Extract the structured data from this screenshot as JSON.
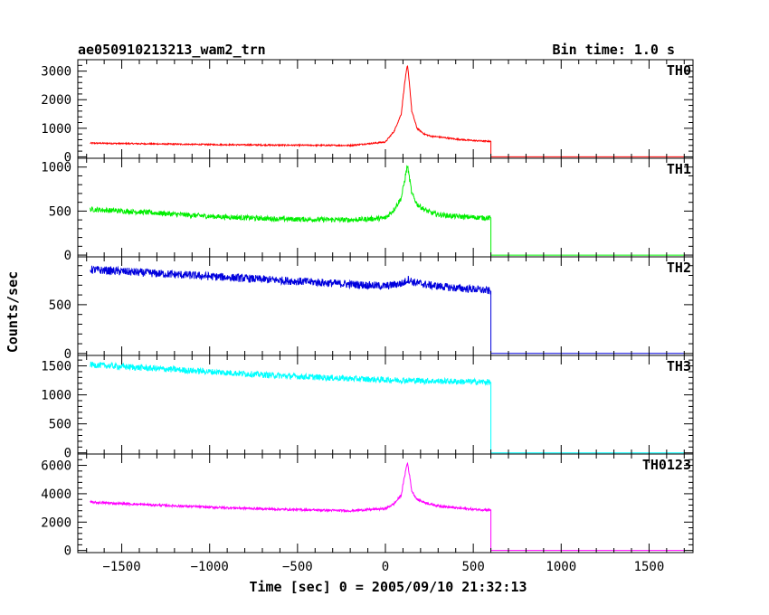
{
  "chart_data": {
    "type": "line",
    "title": "ae050910213213_wam2_trn",
    "subtitle": "Bin time: 1.0 s",
    "xlabel": "Time [sec] 0 = 2005/09/10 21:32:13",
    "ylabel": "Counts/sec",
    "xlim": [
      -1750,
      1750
    ],
    "x_ticks": [
      -1500,
      -1000,
      -500,
      0,
      500,
      1000,
      1500
    ],
    "x_tick_labels": [
      "−1500",
      "−1000",
      "−500",
      "0",
      "500",
      "1000",
      "1500"
    ],
    "data_end_time": 600,
    "panels": [
      {
        "name": "TH0",
        "color": "#ff0000",
        "ylim": [
          -50,
          3400
        ],
        "y_ticks": [
          0,
          1000,
          2000,
          3000
        ],
        "series": {
          "x": [
            -1680,
            -1400,
            -1000,
            -600,
            -200,
            0,
            50,
            90,
            110,
            125,
            135,
            150,
            180,
            220,
            260,
            300,
            400,
            500,
            598,
            600,
            1700
          ],
          "y": [
            480,
            460,
            430,
            410,
            400,
            520,
            900,
            1500,
            2600,
            3200,
            2700,
            1600,
            1000,
            800,
            720,
            700,
            620,
            570,
            540,
            0,
            0
          ]
        },
        "noise": 18
      },
      {
        "name": "TH1",
        "color": "#00ee00",
        "ylim": [
          -20,
          1100
        ],
        "y_ticks": [
          0,
          500,
          1000
        ],
        "series": {
          "x": [
            -1680,
            -1400,
            -1000,
            -600,
            -200,
            0,
            50,
            90,
            110,
            125,
            135,
            150,
            180,
            220,
            260,
            300,
            400,
            500,
            598,
            600,
            1700
          ],
          "y": [
            520,
            490,
            440,
            410,
            400,
            420,
            520,
            650,
            850,
            1020,
            900,
            700,
            580,
            520,
            480,
            460,
            440,
            430,
            420,
            0,
            0
          ]
        },
        "noise": 22
      },
      {
        "name": "TH2",
        "color": "#0000dd",
        "ylim": [
          -20,
          990
        ],
        "y_ticks": [
          0,
          500
        ],
        "series": {
          "x": [
            -1680,
            -1400,
            -1000,
            -600,
            -200,
            0,
            100,
            130,
            160,
            250,
            400,
            500,
            598,
            600,
            1700
          ],
          "y": [
            860,
            830,
            790,
            750,
            710,
            690,
            720,
            760,
            730,
            700,
            670,
            660,
            640,
            0,
            0
          ]
        },
        "noise": 30
      },
      {
        "name": "TH3",
        "color": "#00ffff",
        "ylim": [
          -20,
          1680
        ],
        "y_ticks": [
          0,
          500,
          1000,
          1500
        ],
        "series": {
          "x": [
            -1680,
            -1400,
            -1000,
            -600,
            -200,
            0,
            400,
            598,
            600,
            1700
          ],
          "y": [
            1520,
            1470,
            1400,
            1330,
            1280,
            1260,
            1230,
            1220,
            0,
            0
          ]
        },
        "noise": 35
      },
      {
        "name": "TH0123",
        "color": "#ff00ff",
        "ylim": [
          -150,
          6800
        ],
        "y_ticks": [
          0,
          2000,
          4000,
          6000
        ],
        "series": {
          "x": [
            -1680,
            -1400,
            -1000,
            -600,
            -200,
            0,
            50,
            90,
            110,
            125,
            135,
            150,
            180,
            220,
            260,
            300,
            400,
            500,
            598,
            600,
            1700
          ],
          "y": [
            3400,
            3250,
            3050,
            2900,
            2800,
            2950,
            3300,
            3900,
            5300,
            6200,
            5500,
            4200,
            3600,
            3400,
            3250,
            3150,
            3000,
            2900,
            2850,
            0,
            0
          ]
        },
        "noise": 45
      }
    ]
  }
}
